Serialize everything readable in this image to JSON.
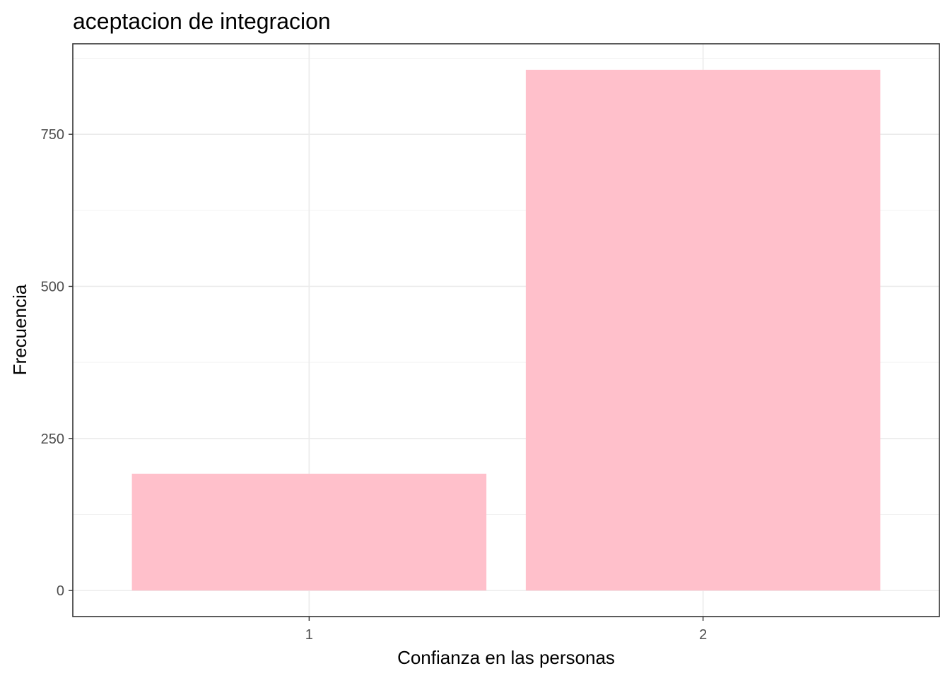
{
  "chart_data": {
    "type": "bar",
    "title": "aceptacion de integracion",
    "xlabel": "Confianza en las personas",
    "ylabel": "Frecuencia",
    "categories": [
      "1",
      "2"
    ],
    "values": [
      192,
      856
    ],
    "ylim": [
      -42.8,
      898.8
    ],
    "yticks": [
      0,
      250,
      500,
      750
    ],
    "grid": true,
    "bar_color": "#FFC0CB",
    "theme": "bw"
  }
}
